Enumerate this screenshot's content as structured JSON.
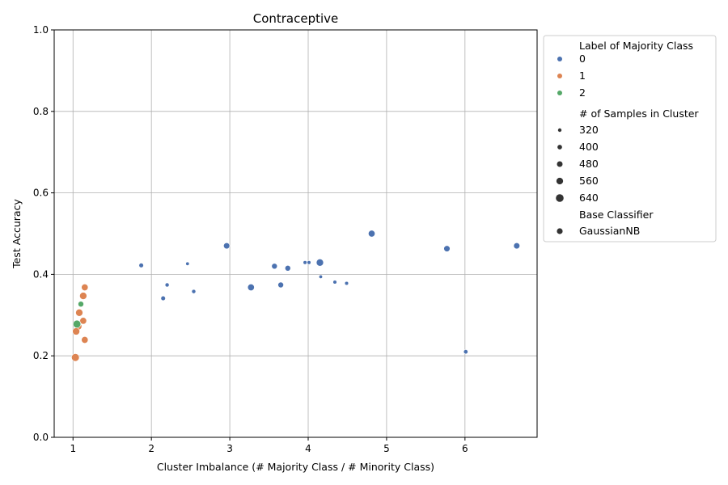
{
  "chart_data": {
    "type": "scatter",
    "title": "Contraceptive",
    "xlabel": "Cluster Imbalance (# Majority Class / # Minority Class)",
    "ylabel": "Test Accuracy",
    "xlim": [
      0.76,
      6.92
    ],
    "ylim": [
      0.0,
      1.0
    ],
    "xticks": [
      1,
      2,
      3,
      4,
      5,
      6
    ],
    "yticks": [
      0.0,
      0.2,
      0.4,
      0.6,
      0.8,
      1.0
    ],
    "grid": true,
    "legend_position": "outside-right",
    "legend": {
      "hue_title": "Label of Majority Class",
      "hue_entries": [
        {
          "label": "0",
          "color": "#4c72b0"
        },
        {
          "label": "1",
          "color": "#dd8452"
        },
        {
          "label": "2",
          "color": "#55a868"
        }
      ],
      "size_title": "# of Samples in Cluster",
      "size_entries": [
        {
          "label": "320",
          "value": 320
        },
        {
          "label": "400",
          "value": 400
        },
        {
          "label": "480",
          "value": 480
        },
        {
          "label": "560",
          "value": 560
        },
        {
          "label": "640",
          "value": 640
        }
      ],
      "style_title": "Base Classifier",
      "style_entries": [
        {
          "label": "GaussianNB"
        }
      ]
    },
    "series": [
      {
        "name": "0",
        "color": "#4c72b0",
        "points": [
          {
            "x": 1.87,
            "y": 0.422,
            "size": 400
          },
          {
            "x": 2.15,
            "y": 0.341,
            "size": 400
          },
          {
            "x": 2.2,
            "y": 0.374,
            "size": 360
          },
          {
            "x": 2.46,
            "y": 0.426,
            "size": 320
          },
          {
            "x": 2.54,
            "y": 0.358,
            "size": 360
          },
          {
            "x": 2.96,
            "y": 0.47,
            "size": 520
          },
          {
            "x": 3.27,
            "y": 0.368,
            "size": 560
          },
          {
            "x": 3.57,
            "y": 0.42,
            "size": 480
          },
          {
            "x": 3.65,
            "y": 0.374,
            "size": 480
          },
          {
            "x": 3.74,
            "y": 0.415,
            "size": 480
          },
          {
            "x": 3.96,
            "y": 0.429,
            "size": 340
          },
          {
            "x": 4.01,
            "y": 0.429,
            "size": 340
          },
          {
            "x": 4.15,
            "y": 0.429,
            "size": 600
          },
          {
            "x": 4.16,
            "y": 0.394,
            "size": 320
          },
          {
            "x": 4.34,
            "y": 0.381,
            "size": 340
          },
          {
            "x": 4.49,
            "y": 0.378,
            "size": 340
          },
          {
            "x": 4.81,
            "y": 0.5,
            "size": 560
          },
          {
            "x": 5.77,
            "y": 0.463,
            "size": 520
          },
          {
            "x": 6.01,
            "y": 0.21,
            "size": 380
          },
          {
            "x": 6.66,
            "y": 0.47,
            "size": 520
          }
        ]
      },
      {
        "name": "1",
        "color": "#dd8452",
        "points": [
          {
            "x": 1.15,
            "y": 0.368,
            "size": 560
          },
          {
            "x": 1.13,
            "y": 0.347,
            "size": 600
          },
          {
            "x": 1.08,
            "y": 0.306,
            "size": 600
          },
          {
            "x": 1.13,
            "y": 0.286,
            "size": 560
          },
          {
            "x": 1.07,
            "y": 0.272,
            "size": 560
          },
          {
            "x": 1.04,
            "y": 0.26,
            "size": 600
          },
          {
            "x": 1.15,
            "y": 0.239,
            "size": 560
          },
          {
            "x": 1.03,
            "y": 0.196,
            "size": 640
          }
        ]
      },
      {
        "name": "2",
        "color": "#55a868",
        "points": [
          {
            "x": 1.1,
            "y": 0.327,
            "size": 480
          },
          {
            "x": 1.05,
            "y": 0.278,
            "size": 640
          }
        ]
      }
    ]
  }
}
